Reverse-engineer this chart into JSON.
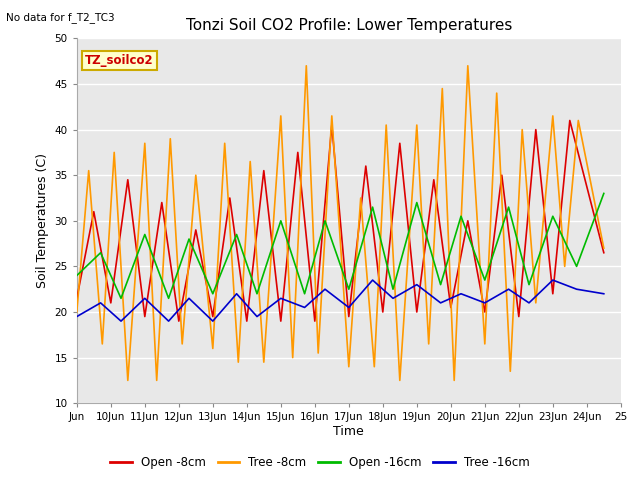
{
  "title": "Tonzi Soil CO2 Profile: Lower Temperatures",
  "subtitle": "No data for f_T2_TC3",
  "xlabel": "Time",
  "ylabel": "Soil Temperatures (C)",
  "ylim": [
    10,
    50
  ],
  "yticks": [
    10,
    15,
    20,
    25,
    30,
    35,
    40,
    45,
    50
  ],
  "xtick_positions": [
    0,
    1,
    2,
    3,
    4,
    5,
    6,
    7,
    8,
    9,
    10,
    11,
    12,
    13,
    14,
    15,
    16
  ],
  "xtick_labels": [
    "Jun",
    "10Jun",
    "11Jun",
    "12Jun",
    "13Jun",
    "14Jun",
    "15Jun",
    "16Jun",
    "17Jun",
    "18Jun",
    "19Jun",
    "20Jun",
    "21Jun",
    "22Jun",
    "23Jun",
    "24Jun",
    "25"
  ],
  "plot_bg_color": "#e8e8e8",
  "annotation_text": "TZ_soilco2",
  "annotation_color": "#cc0000",
  "annotation_bg": "#ffffcc",
  "annotation_border": "#ccaa00",
  "legend_entries": [
    "Open -8cm",
    "Tree -8cm",
    "Open -16cm",
    "Tree -16cm"
  ],
  "legend_colors": [
    "#dd0000",
    "#ff9900",
    "#00bb00",
    "#0000cc"
  ],
  "line_colors": [
    "#dd0000",
    "#ff9900",
    "#00bb00",
    "#0000cc"
  ],
  "open8_x": [
    0,
    0.5,
    1.0,
    1.5,
    2.0,
    2.5,
    3.0,
    3.5,
    4.0,
    4.5,
    5.0,
    5.5,
    6.0,
    6.5,
    7.0,
    7.5,
    8.0,
    8.5,
    9.0,
    9.5,
    10.0,
    10.5,
    11.0,
    11.5,
    12.0,
    12.5,
    13.0,
    13.5,
    14.0,
    14.5,
    15.5
  ],
  "open8_y": [
    21.5,
    31.0,
    21.0,
    34.5,
    19.5,
    32.0,
    19.0,
    29.0,
    19.5,
    32.5,
    19.0,
    35.5,
    19.0,
    37.5,
    19.0,
    40.5,
    19.5,
    36.0,
    20.0,
    38.5,
    20.0,
    34.5,
    20.5,
    30.0,
    20.0,
    35.0,
    19.5,
    40.0,
    22.0,
    41.0,
    26.5
  ],
  "tree8_x": [
    0,
    0.35,
    0.75,
    1.1,
    1.5,
    2.0,
    2.35,
    2.75,
    3.1,
    3.5,
    4.0,
    4.35,
    4.75,
    5.1,
    5.5,
    6.0,
    6.35,
    6.75,
    7.1,
    7.5,
    8.0,
    8.35,
    8.75,
    9.1,
    9.5,
    10.0,
    10.35,
    10.75,
    11.1,
    11.5,
    12.0,
    12.35,
    12.75,
    13.1,
    13.5,
    14.0,
    14.35,
    14.75,
    15.5
  ],
  "tree8_y": [
    20.0,
    35.5,
    16.5,
    37.5,
    12.5,
    38.5,
    12.5,
    39.0,
    16.5,
    35.0,
    16.0,
    38.5,
    14.5,
    36.5,
    14.5,
    41.5,
    15.0,
    47.0,
    15.5,
    41.5,
    14.0,
    32.5,
    14.0,
    40.5,
    12.5,
    40.5,
    16.5,
    44.5,
    12.5,
    47.0,
    16.5,
    44.0,
    13.5,
    40.0,
    21.0,
    41.5,
    25.0,
    41.0,
    27.0
  ],
  "open16_x": [
    0,
    0.7,
    1.3,
    2.0,
    2.7,
    3.3,
    4.0,
    4.7,
    5.3,
    6.0,
    6.7,
    7.3,
    8.0,
    8.7,
    9.3,
    10.0,
    10.7,
    11.3,
    12.0,
    12.7,
    13.3,
    14.0,
    14.7,
    15.5
  ],
  "open16_y": [
    24.0,
    26.5,
    21.5,
    28.5,
    21.5,
    28.0,
    22.0,
    28.5,
    22.0,
    30.0,
    22.0,
    30.0,
    22.5,
    31.5,
    22.5,
    32.0,
    23.0,
    30.5,
    23.5,
    31.5,
    23.0,
    30.5,
    25.0,
    33.0
  ],
  "tree16_x": [
    0,
    0.7,
    1.3,
    2.0,
    2.7,
    3.3,
    4.0,
    4.7,
    5.3,
    6.0,
    6.7,
    7.3,
    8.0,
    8.7,
    9.3,
    10.0,
    10.7,
    11.3,
    12.0,
    12.7,
    13.3,
    14.0,
    14.7,
    15.5
  ],
  "tree16_y": [
    19.5,
    21.0,
    19.0,
    21.5,
    19.0,
    21.5,
    19.0,
    22.0,
    19.5,
    21.5,
    20.5,
    22.5,
    20.5,
    23.5,
    21.5,
    23.0,
    21.0,
    22.0,
    21.0,
    22.5,
    21.0,
    23.5,
    22.5,
    22.0
  ]
}
